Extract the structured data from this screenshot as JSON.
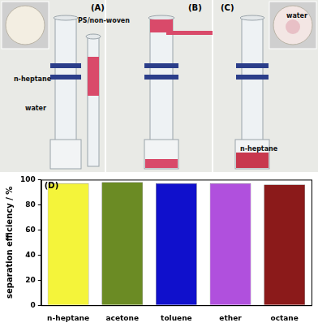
{
  "photos": [
    {
      "label": "(A)",
      "annotations": [
        "PS/non-woven",
        "n-heptane",
        "water"
      ]
    },
    {
      "label": "(B)"
    },
    {
      "label": "(C)",
      "annotations": [
        "water",
        "n-heptane"
      ]
    }
  ],
  "chart_data": {
    "type": "bar",
    "annotations": [
      "(D)"
    ],
    "y_label": "separation efficiency / %",
    "categories": [
      "n-heptane",
      "acetone",
      "toluene",
      "ether",
      "octane"
    ],
    "values": [
      97,
      98,
      97,
      97,
      96
    ],
    "colors": [
      "#f4f43a",
      "#6b8b24",
      "#1010cc",
      "#b050dd",
      "#8b1a1a"
    ],
    "ylim": [
      0,
      100
    ],
    "yticks": [
      0,
      20,
      40,
      60,
      80,
      100
    ],
    "grid": false
  }
}
